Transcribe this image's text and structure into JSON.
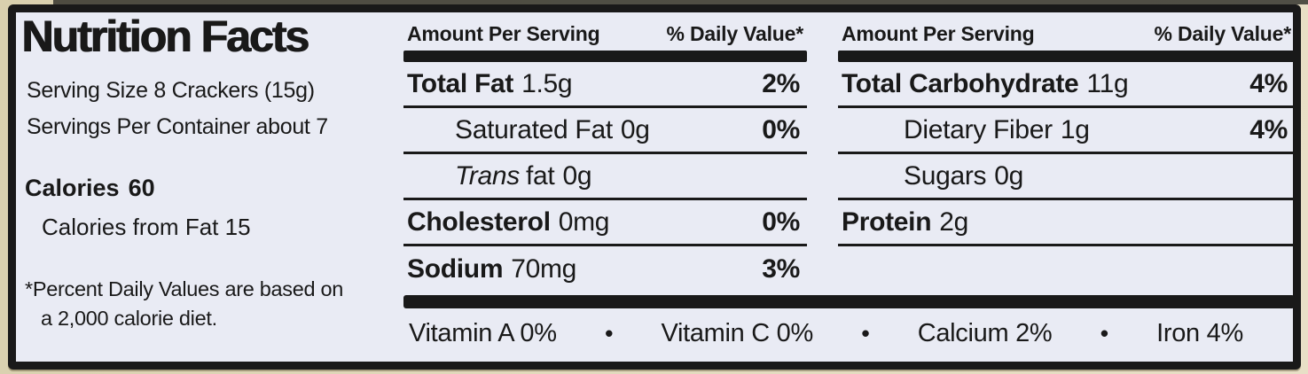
{
  "colors": {
    "page_bg": "#dcd3b4",
    "label_bg": "#e9ebf4",
    "ink": "#191919"
  },
  "header": {
    "title": "Nutrition Facts"
  },
  "serving": {
    "size": "Serving Size 8 Crackers (15g)",
    "per_container": "Servings Per Container about 7",
    "calories_label": "Calories",
    "calories_value": "60",
    "calories_from_fat": "Calories from Fat 15"
  },
  "footnote": {
    "line1": "*Percent Daily Values are based on",
    "line2": "a 2,000 calorie diet."
  },
  "table": {
    "amount_header": "Amount Per Serving",
    "dv_header": "% Daily Value*",
    "mid_rows": [
      {
        "name": "Total Fat",
        "amount": "1.5g",
        "dv": "2%"
      },
      {
        "name": "Saturated Fat",
        "amount": "0g",
        "dv": "0%"
      },
      {
        "name_italic": "Trans",
        "name": "fat",
        "amount": "0g",
        "dv": ""
      },
      {
        "name": "Cholesterol",
        "amount": "0mg",
        "dv": "0%"
      },
      {
        "name": "Sodium",
        "amount": "70mg",
        "dv": "3%"
      }
    ],
    "right_rows": [
      {
        "name": "Total Carbohydrate",
        "amount": "11g",
        "dv": "4%"
      },
      {
        "name": "Dietary Fiber",
        "amount": "1g",
        "dv": "4%"
      },
      {
        "name": "Sugars",
        "amount": "0g",
        "dv": ""
      },
      {
        "name": "Protein",
        "amount": "2g",
        "dv": ""
      }
    ]
  },
  "vitamins": {
    "separator": "•",
    "items": [
      "Vitamin A 0%",
      "Vitamin C 0%",
      "Calcium 2%",
      "Iron 4%"
    ]
  }
}
